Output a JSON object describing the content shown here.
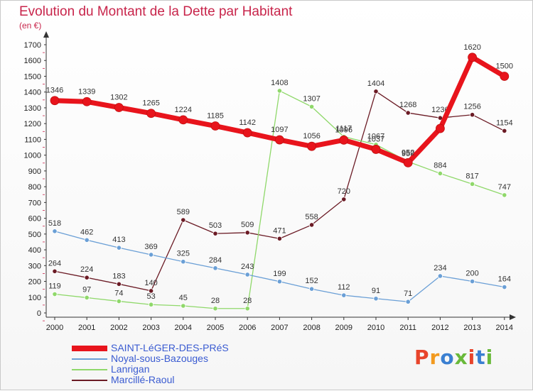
{
  "header": {
    "title": "Evolution du Montant de la Dette par Habitant",
    "unit": "(en €)"
  },
  "colors": {
    "title": "#c8254b",
    "legend_text": "#3a5bd1"
  },
  "logo": {
    "text": "Proxiti",
    "colors": [
      "#e8442b",
      "#f29a1f",
      "#3a7fd1",
      "#69b93a",
      "#e8442b",
      "#3a7fd1",
      "#69b93a"
    ]
  },
  "chart_data": {
    "type": "line",
    "title": "Evolution du Montant de la Dette par Habitant",
    "subtitle": "(en €)",
    "xlabel": "",
    "ylabel": "",
    "x": [
      2000,
      2001,
      2002,
      2003,
      2004,
      2005,
      2006,
      2007,
      2008,
      2009,
      2010,
      2011,
      2012,
      2013,
      2014
    ],
    "ylim": [
      0,
      1700
    ],
    "yticks": [
      0,
      100,
      200,
      300,
      400,
      500,
      600,
      700,
      800,
      900,
      1000,
      1100,
      1200,
      1300,
      1400,
      1500,
      1600,
      1700
    ],
    "grid": false,
    "legend_position": "bottom-left",
    "series": [
      {
        "name": "Marcillé-Raoul",
        "color": "#6b1b25",
        "width": 1.3,
        "values": [
          264,
          224,
          183,
          140,
          589,
          503,
          509,
          471,
          558,
          720,
          1404,
          1268,
          1236,
          1256,
          1154
        ]
      },
      {
        "name": "Lanrigan",
        "color": "#8fd86a",
        "width": 1.3,
        "values": [
          119,
          97,
          74,
          53,
          45,
          28,
          28,
          1408,
          1307,
          1117,
          1067,
          959,
          884,
          817,
          747
        ]
      },
      {
        "name": "Noyal-sous-Bazouges",
        "color": "#6a9fd6",
        "width": 1.3,
        "values": [
          518,
          462,
          413,
          369,
          325,
          284,
          243,
          199,
          152,
          112,
          91,
          71,
          234,
          200,
          164
        ]
      },
      {
        "name": "SAINT-LéGER-DES-PRéS",
        "color": "#e8141c",
        "width": 7,
        "values": [
          1346,
          1339,
          1302,
          1265,
          1224,
          1185,
          1142,
          1097,
          1056,
          1096,
          1037,
          952,
          1169,
          1620,
          1500
        ],
        "labels": [
          "1346",
          "1339",
          "1302",
          "1265",
          "1224",
          "1185",
          "1142",
          "1097",
          "1056",
          "1096",
          "1037",
          "952",
          "",
          "1620",
          "1500"
        ]
      }
    ],
    "legend": [
      "SAINT-LéGER-DES-PRéS",
      "Noyal-sous-Bazouges",
      "Lanrigan",
      "Marcillé-Raoul"
    ]
  }
}
